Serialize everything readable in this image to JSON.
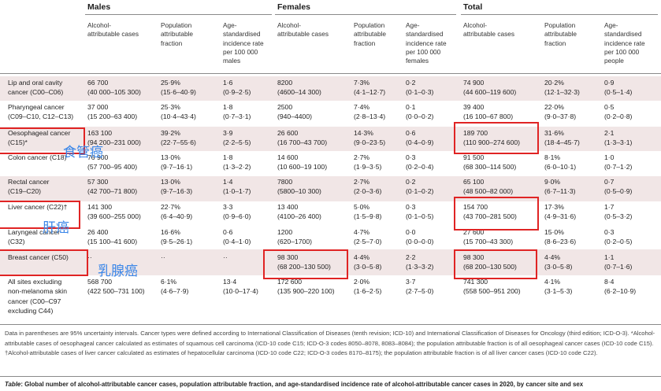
{
  "groups": [
    "Males",
    "Females",
    "Total"
  ],
  "subheaders": {
    "cases": [
      "Alcohol-",
      "attributable cases"
    ],
    "fraction": [
      "Population",
      "attributable",
      "fraction"
    ],
    "rate_males": [
      "Age-",
      "standardised",
      "incidence rate",
      "per 100 000",
      "males"
    ],
    "rate_females": [
      "Age-",
      "standardised",
      "incidence rate",
      "per 100 000",
      "females"
    ],
    "rate_people": [
      "Age-",
      "standardised",
      "incidence rate",
      "per 100 000",
      "people"
    ]
  },
  "rows": [
    {
      "label": [
        "Lip and oral cavity",
        "cancer (C00–C06)"
      ],
      "cells": [
        [
          "66 700",
          "(40 000–105 300)"
        ],
        [
          "25·9%",
          "(15·6–40·9)"
        ],
        [
          "1·6",
          "(0·9–2·5)"
        ],
        [
          "8200",
          "(4600–14 300)"
        ],
        [
          "7·3%",
          "(4·1–12·7)"
        ],
        [
          "0·2",
          "(0·1–0·3)"
        ],
        [
          "74 900",
          "(44 600–119 600)"
        ],
        [
          "20·2%",
          "(12·1–32·3)"
        ],
        [
          "0·9",
          "(0·5–1·4)"
        ]
      ]
    },
    {
      "label": [
        "Pharyngeal cancer",
        "(C09–C10, C12–C13)"
      ],
      "cells": [
        [
          "37 000",
          "(15 200–63 400)"
        ],
        [
          "25·3%",
          "(10·4–43·4)"
        ],
        [
          "1·8",
          "(0·7–3·1)"
        ],
        [
          "2500",
          "(940–4400)"
        ],
        [
          "7·4%",
          "(2·8–13·4)"
        ],
        [
          "0·1",
          "(0·0–0·2)"
        ],
        [
          "39 400",
          "(16 100–67 800)"
        ],
        [
          "22·0%",
          "(9·0–37·8)"
        ],
        [
          "0·5",
          "(0·2–0·8)"
        ]
      ]
    },
    {
      "label": [
        "Oesophageal cancer",
        "(C15)*"
      ],
      "cells": [
        [
          "163 100",
          "(94 200–231 000)"
        ],
        [
          "39·2%",
          "(22·7–55·6)"
        ],
        [
          "3·9",
          "(2·2–5·5)"
        ],
        [
          "26 600",
          "(16 700–43 700)"
        ],
        [
          "14·3%",
          "(9·0–23·5)"
        ],
        [
          "0·6",
          "(0·4–0·9)"
        ],
        [
          "189 700",
          "(110 900–274 600)"
        ],
        [
          "31·6%",
          "(18·4–45·7)"
        ],
        [
          "2·1",
          "(1·3–3·1)"
        ]
      ]
    },
    {
      "label": [
        "Colon cancer (C18)"
      ],
      "cells": [
        [
          "76 900",
          "(57 700–95 400)"
        ],
        [
          "13·0%",
          "(9·7–16·1)"
        ],
        [
          "1·8",
          "(1·3–2·2)"
        ],
        [
          "14 600",
          "(10 600–19 100)"
        ],
        [
          "2·7%",
          "(1·9–3·5)"
        ],
        [
          "0·3",
          "(0·2–0·4)"
        ],
        [
          "91 500",
          "(68 300–114 500)"
        ],
        [
          "8·1%",
          "(6·0–10·1)"
        ],
        [
          "1·0",
          "(0·7–1·2)"
        ]
      ]
    },
    {
      "label": [
        "Rectal cancer",
        "(C19–C20)"
      ],
      "cells": [
        [
          "57 300",
          "(42 700–71 800)"
        ],
        [
          "13·0%",
          "(9·7–16·3)"
        ],
        [
          "1·4",
          "(1·0–1·7)"
        ],
        [
          "7800",
          "(5800–10 300)"
        ],
        [
          "2·7%",
          "(2·0–3·6)"
        ],
        [
          "0·2",
          "(0·1–0·2)"
        ],
        [
          "65 100",
          "(48 500–82 000)"
        ],
        [
          "9·0%",
          "(6·7–11·3)"
        ],
        [
          "0·7",
          "(0·5–0·9)"
        ]
      ]
    },
    {
      "label": [
        "Liver cancer (C22)†"
      ],
      "cells": [
        [
          "141 300",
          "(39 600–255 000)"
        ],
        [
          "22·7%",
          "(6·4–40·9)"
        ],
        [
          "3·3",
          "(0·9–6·0)"
        ],
        [
          "13 400",
          "(4100–26 400)"
        ],
        [
          "5·0%",
          "(1·5–9·8)"
        ],
        [
          "0·3",
          "(0·1–0·5)"
        ],
        [
          "154 700",
          "(43 700–281 500)"
        ],
        [
          "17·3%",
          "(4·9–31·6)"
        ],
        [
          "1·7",
          "(0·5–3·2)"
        ]
      ]
    },
    {
      "label": [
        "Laryngeal cancer",
        "(C32)"
      ],
      "cells": [
        [
          "26 400",
          "(15 100–41 600)"
        ],
        [
          "16·6%",
          "(9·5–26·1)"
        ],
        [
          "0·6",
          "(0·4–1·0)"
        ],
        [
          "1200",
          "(620–1700)"
        ],
        [
          "4·7%",
          "(2·5–7·0)"
        ],
        [
          "0·0",
          "(0·0–0·0)"
        ],
        [
          "27 600",
          "(15 700–43 300)"
        ],
        [
          "15·0%",
          "(8·6–23·6)"
        ],
        [
          "0·3",
          "(0·2–0·5)"
        ]
      ]
    },
    {
      "label": [
        "Breast cancer (C50)"
      ],
      "cells": [
        [
          "··",
          ""
        ],
        [
          "··",
          ""
        ],
        [
          "··",
          ""
        ],
        [
          "98 300",
          "(68 200–130 500)"
        ],
        [
          "4·4%",
          "(3·0–5·8)"
        ],
        [
          "2·2",
          "(1·3–3·2)"
        ],
        [
          "98 300",
          "(68 200–130 500)"
        ],
        [
          "4·4%",
          "(3·0–5·8)"
        ],
        [
          "1·1",
          "(0·7–1·6)"
        ]
      ]
    },
    {
      "label": [
        "All sites excluding",
        "non-melanoma skin",
        "cancer (C00–C97",
        "excluding C44)"
      ],
      "cells": [
        [
          "568 700",
          "(422 500–731 100)"
        ],
        [
          "6·1%",
          "(4·6–7·9)"
        ],
        [
          "13·4",
          "(10·0–17·4)"
        ],
        [
          "172 600",
          "(135 900–220 100)"
        ],
        [
          "2·0%",
          "(1·6–2·5)"
        ],
        [
          "3·7",
          "(2·7–5·0)"
        ],
        [
          "741 300",
          "(558 500–951 200)"
        ],
        [
          "4·1%",
          "(3·1–5·3)"
        ],
        [
          "8·4",
          "(6·2–10·9)"
        ]
      ]
    }
  ],
  "annotations": {
    "oesophageal": "食管癌",
    "liver": "肝癌",
    "breast": "乳腺癌"
  },
  "footnote": "Data in parentheses are 95% uncertainty intervals. Cancer types were defined according to International Classification of Diseases (tenth revision; ICD-10) and International Classification of Diseases for Oncology (third edition; ICD-O-3). *Alcohol-attributable cases of oesophageal cancer calculated as estimates of squamous cell carcinoma (ICD-10 code C15; ICD-O-3 codes 8050–8078, 8083–8084); the population attributable fraction is of all oesophageal cancer cases (ICD-10 code C15). †Alcohol-attributable cases of liver cancer calculated as estimates of hepatocellular carcinoma (ICD-10 code C22; ICD-O-3 codes 8170–8175); the population attributable fraction is of all liver cancer cases (ICD-10 code C22).",
  "caption": {
    "prefix": "Table",
    "text": ": Global number of alcohol-attributable cancer cases, population attributable fraction, and age-standardised incidence rate of alcohol-attributable cancer cases in 2020, by cancer site and sex"
  },
  "colors": {
    "highlight_box": "#e02424",
    "annotation_text": "#3a86e8",
    "row_shade": "#f1e6e6"
  }
}
